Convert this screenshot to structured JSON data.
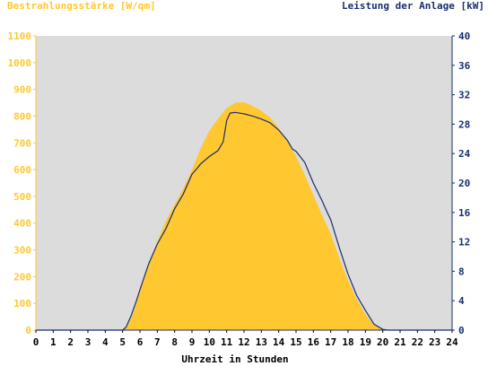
{
  "chart_data": {
    "type": "area",
    "left_axis_label": "Bestrahlungsstärke [W/qm]",
    "right_axis_label": "Leistung der Anlage [kW]",
    "xlabel": "Uhrzeit in Stunden",
    "xlim": [
      0,
      24
    ],
    "x_ticks": [
      "0",
      "1",
      "2",
      "3",
      "4",
      "5",
      "6",
      "7",
      "8",
      "9",
      "10",
      "11",
      "12",
      "13",
      "14",
      "15",
      "16",
      "17",
      "18",
      "19",
      "20",
      "21",
      "22",
      "23",
      "24"
    ],
    "left_ylim": [
      0,
      1100
    ],
    "left_ticks": [
      "0",
      "100",
      "200",
      "300",
      "400",
      "500",
      "600",
      "700",
      "800",
      "900",
      "1000",
      "1100"
    ],
    "right_ylim": [
      0,
      40
    ],
    "right_ticks": [
      "0",
      "4",
      "8",
      "12",
      "16",
      "20",
      "24",
      "28",
      "32",
      "36",
      "40"
    ],
    "grid": false,
    "plot_background": "#dcdcdc",
    "series": [
      {
        "name": "Bestrahlungsstärke",
        "axis": "left",
        "style": "filled-area",
        "color": "#ffc830",
        "x": [
          0,
          5.0,
          5.3,
          5.6,
          6.0,
          6.5,
          7.0,
          7.5,
          8.0,
          8.5,
          9.0,
          9.5,
          10.0,
          10.5,
          11.0,
          11.5,
          12.0,
          12.5,
          13.0,
          13.5,
          14.0,
          14.5,
          15.0,
          15.5,
          16.0,
          16.5,
          17.0,
          17.5,
          18.0,
          18.5,
          19.0,
          19.5,
          20.0,
          20.3,
          24
        ],
        "y": [
          0,
          0,
          20,
          60,
          150,
          250,
          330,
          410,
          470,
          530,
          600,
          680,
          745,
          790,
          830,
          850,
          852,
          838,
          820,
          795,
          755,
          705,
          650,
          580,
          505,
          430,
          360,
          270,
          185,
          115,
          60,
          18,
          3,
          0,
          0
        ]
      },
      {
        "name": "Leistung der Anlage",
        "axis": "right",
        "style": "line",
        "color": "#1a2e6e",
        "x": [
          0,
          5.0,
          5.2,
          5.5,
          5.8,
          6.0,
          6.5,
          7.0,
          7.5,
          8.0,
          8.5,
          9.0,
          9.3,
          9.5,
          10.0,
          10.5,
          10.8,
          11.0,
          11.2,
          11.5,
          12.0,
          12.5,
          13.0,
          13.5,
          14.0,
          14.5,
          14.8,
          15.0,
          15.5,
          16.0,
          16.5,
          16.8,
          17.0,
          17.5,
          18.0,
          18.5,
          19.0,
          19.5,
          20.0,
          20.3,
          24
        ],
        "y": [
          0,
          0,
          0.4,
          2.0,
          4.0,
          5.5,
          9.0,
          11.7,
          13.8,
          16.5,
          18.5,
          21.2,
          22.0,
          22.6,
          23.6,
          24.4,
          25.6,
          28.5,
          29.5,
          29.6,
          29.4,
          29.1,
          28.7,
          28.2,
          27.2,
          25.8,
          24.6,
          24.3,
          22.8,
          20.0,
          17.6,
          16.0,
          15.0,
          11.2,
          7.6,
          4.7,
          2.7,
          0.8,
          0.1,
          0,
          0
        ]
      }
    ]
  }
}
